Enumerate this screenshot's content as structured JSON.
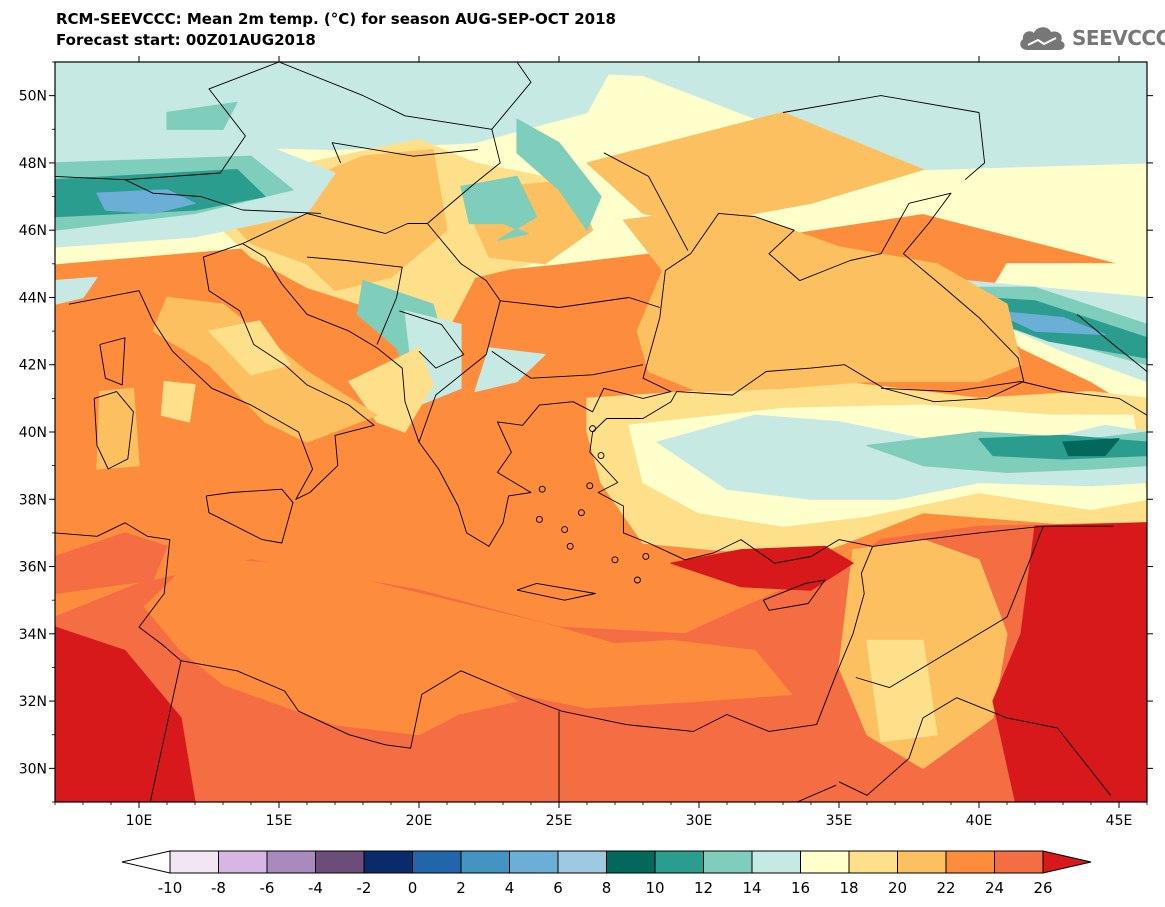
{
  "header": {
    "title_line1": "RCM-SEEVCCC: Mean 2m temp. (°C) for season AUG-SEP-OCT 2018",
    "title_line2": "Forecast start: 00Z01AUG2018",
    "logo_text": "SEEVCCC",
    "logo_icon": "cloud-icon"
  },
  "map": {
    "lon_range": [
      7,
      46
    ],
    "lat_range": [
      29,
      51
    ],
    "lat_ticks": [
      {
        "value": 50,
        "label": "50N"
      },
      {
        "value": 48,
        "label": "48N"
      },
      {
        "value": 46,
        "label": "46N"
      },
      {
        "value": 44,
        "label": "44N"
      },
      {
        "value": 42,
        "label": "42N"
      },
      {
        "value": 40,
        "label": "40N"
      },
      {
        "value": 38,
        "label": "38N"
      },
      {
        "value": 36,
        "label": "36N"
      },
      {
        "value": 34,
        "label": "34N"
      },
      {
        "value": 32,
        "label": "32N"
      },
      {
        "value": 30,
        "label": "30N"
      }
    ],
    "lon_ticks": [
      {
        "value": 10,
        "label": "10E"
      },
      {
        "value": 15,
        "label": "15E"
      },
      {
        "value": 20,
        "label": "20E"
      },
      {
        "value": 25,
        "label": "25E"
      },
      {
        "value": 30,
        "label": "30E"
      },
      {
        "value": 35,
        "label": "35E"
      },
      {
        "value": 40,
        "label": "40E"
      },
      {
        "value": 45,
        "label": "45E"
      }
    ]
  },
  "colorbar": {
    "labels": [
      "-10",
      "-8",
      "-6",
      "-4",
      "-2",
      "0",
      "2",
      "4",
      "6",
      "8",
      "10",
      "12",
      "14",
      "16",
      "18",
      "20",
      "22",
      "24",
      "26"
    ],
    "under_color": "#ffffff",
    "over_color": "#d7191c",
    "colors": [
      "#f2e6f5",
      "#d7b5e4",
      "#a98abe",
      "#6b4c7a",
      "#0a2b6b",
      "#2166ac",
      "#4393c3",
      "#6baed6",
      "#9ecae1",
      "#00695c",
      "#2a9d8f",
      "#7fcdbb",
      "#c7e9e4",
      "#ffffcc",
      "#fee08b",
      "#fdc060",
      "#fd8d3c",
      "#f46d43",
      "#d7191c"
    ]
  },
  "palette": {
    "t14": "#c7e9e4",
    "t16": "#ffffcc",
    "t18": "#fee08b",
    "t20": "#fdc060",
    "t22": "#fd8d3c",
    "t24": "#f46d43",
    "t26": "#d7191c",
    "t12": "#7fcdbb",
    "t10": "#2a9d8f",
    "t8": "#00695c",
    "t4": "#6baed6"
  }
}
